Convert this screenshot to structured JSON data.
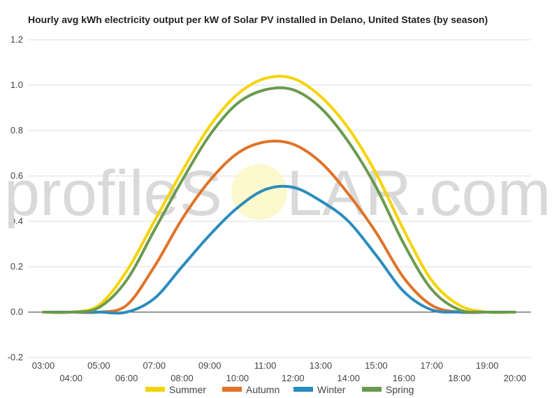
{
  "chart_data": {
    "type": "line",
    "title": "Hourly avg kWh electricity output per kW of Solar PV installed in Delano, United States (by season)",
    "watermark": {
      "left": "profileS",
      "right": "LAR.com"
    },
    "xlabel": "",
    "ylabel": "",
    "ylim": [
      -0.2,
      1.2
    ],
    "yticks": [
      "-0.2",
      "0.0",
      "0.2",
      "0.4",
      "0.6",
      "0.8",
      "1.0",
      "1.2"
    ],
    "ytick_values": [
      -0.2,
      0,
      0.2,
      0.4,
      0.6,
      0.8,
      1.0,
      1.2
    ],
    "x": [
      "03:00",
      "04:00",
      "05:00",
      "06:00",
      "07:00",
      "08:00",
      "09:00",
      "10:00",
      "11:00",
      "12:00",
      "13:00",
      "14:00",
      "15:00",
      "16:00",
      "17:00",
      "18:00",
      "19:00",
      "20:00"
    ],
    "grid": true,
    "legend_position": "bottom",
    "series": [
      {
        "name": "Summer",
        "color": "#f5d300",
        "values": [
          0.0,
          0.0,
          0.03,
          0.18,
          0.4,
          0.62,
          0.82,
          0.96,
          1.03,
          1.03,
          0.95,
          0.81,
          0.61,
          0.36,
          0.14,
          0.03,
          0.0,
          0.0
        ]
      },
      {
        "name": "Autumn",
        "color": "#e07328",
        "values": [
          0.0,
          0.0,
          0.0,
          0.03,
          0.2,
          0.41,
          0.58,
          0.7,
          0.75,
          0.74,
          0.66,
          0.52,
          0.35,
          0.15,
          0.03,
          0.0,
          0.0,
          0.0
        ]
      },
      {
        "name": "Winter",
        "color": "#2b8cbe",
        "values": [
          0.0,
          0.0,
          0.0,
          0.0,
          0.06,
          0.2,
          0.34,
          0.46,
          0.54,
          0.55,
          0.49,
          0.4,
          0.25,
          0.09,
          0.01,
          0.0,
          0.0,
          0.0
        ]
      },
      {
        "name": "Spring",
        "color": "#6a9a50",
        "values": [
          0.0,
          0.0,
          0.02,
          0.14,
          0.36,
          0.58,
          0.78,
          0.92,
          0.98,
          0.98,
          0.9,
          0.75,
          0.55,
          0.3,
          0.1,
          0.01,
          0.0,
          0.0
        ]
      }
    ]
  }
}
